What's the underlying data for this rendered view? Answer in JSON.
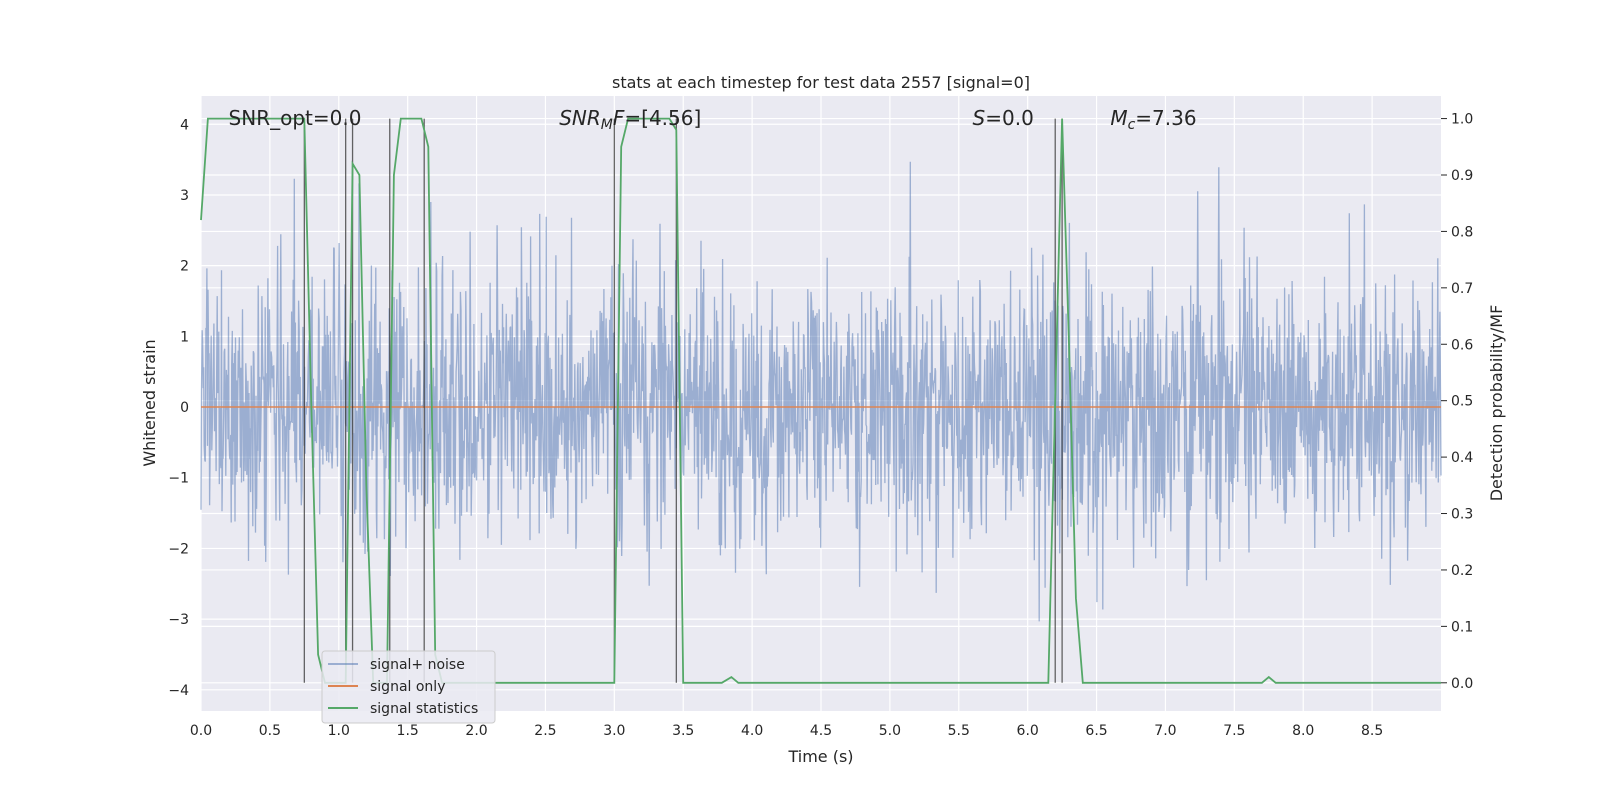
{
  "chart_data": {
    "type": "line",
    "title": "stats at each timestep for test data 2557 [signal=0]",
    "xlabel": "Time (s)",
    "ylabel": "Whitened strain",
    "y2label": "Detection probability/MF",
    "xlim": [
      0,
      9
    ],
    "ylim": [
      -4.3,
      4.4
    ],
    "y2lim": [
      -0.05,
      1.04
    ],
    "xticks": [
      0.0,
      0.5,
      1.0,
      1.5,
      2.0,
      2.5,
      3.0,
      3.5,
      4.0,
      4.5,
      5.0,
      5.5,
      6.0,
      6.5,
      7.0,
      7.5,
      8.0,
      8.5
    ],
    "xtick_labels": [
      "0.0",
      "0.5",
      "1.0",
      "1.5",
      "2.0",
      "2.5",
      "3.0",
      "3.5",
      "4.0",
      "4.5",
      "5.0",
      "5.5",
      "6.0",
      "6.5",
      "7.0",
      "7.5",
      "8.0",
      "8.5"
    ],
    "yticks": [
      -4,
      -3,
      -2,
      -1,
      0,
      1,
      2,
      3,
      4
    ],
    "ytick_labels": [
      "−4",
      "−3",
      "−2",
      "−1",
      "0",
      "1",
      "2",
      "3",
      "4"
    ],
    "y2ticks": [
      0.0,
      0.1,
      0.2,
      0.3,
      0.4,
      0.5,
      0.6,
      0.7,
      0.8,
      0.9,
      1.0
    ],
    "y2tick_labels": [
      "0.0",
      "0.1",
      "0.2",
      "0.3",
      "0.4",
      "0.5",
      "0.6",
      "0.7",
      "0.8",
      "0.9",
      "1.0"
    ],
    "grid": true,
    "legend_position": "lower-left",
    "series": [
      {
        "name": "signal+ noise",
        "axis": "left",
        "color": "#4c72b0",
        "description_kind": "noise",
        "approx_std": 0.95,
        "approx_range": [
          -3.9,
          3.8
        ]
      },
      {
        "name": "signal only",
        "axis": "left",
        "color": "#dd8452",
        "x": [
          0,
          9
        ],
        "y": [
          0,
          0
        ]
      },
      {
        "name": "signal statistics",
        "axis": "right",
        "color": "#55a868",
        "x": [
          0.0,
          0.05,
          0.1,
          0.2,
          0.3,
          0.4,
          0.5,
          0.6,
          0.7,
          0.75,
          0.8,
          0.85,
          0.9,
          1.0,
          1.05,
          1.1,
          1.15,
          1.2,
          1.25,
          1.3,
          1.35,
          1.4,
          1.45,
          1.5,
          1.55,
          1.6,
          1.65,
          1.7,
          1.75,
          1.8,
          2.0,
          2.5,
          2.95,
          3.0,
          3.05,
          3.1,
          3.15,
          3.2,
          3.3,
          3.4,
          3.45,
          3.5,
          3.55,
          3.6,
          3.7,
          3.78,
          3.85,
          3.9,
          4.0,
          4.5,
          5.0,
          5.5,
          6.0,
          6.15,
          6.2,
          6.25,
          6.3,
          6.35,
          6.4,
          6.5,
          7.0,
          7.5,
          7.7,
          7.75,
          7.8,
          7.9,
          8.0,
          8.5,
          9.0
        ],
        "y": [
          0.82,
          1.0,
          1.0,
          1.0,
          1.0,
          1.0,
          1.0,
          1.0,
          1.0,
          1.0,
          0.5,
          0.05,
          0.0,
          0.0,
          0.0,
          0.92,
          0.9,
          0.35,
          0.0,
          0.0,
          0.0,
          0.9,
          1.0,
          1.0,
          1.0,
          1.0,
          0.95,
          0.05,
          0.0,
          0.0,
          0.0,
          0.0,
          0.0,
          0.0,
          0.95,
          1.0,
          1.0,
          1.0,
          1.0,
          1.0,
          0.98,
          0.0,
          0.0,
          0.0,
          0.0,
          0.0,
          0.01,
          0.0,
          0.0,
          0.0,
          0.0,
          0.0,
          0.0,
          0.0,
          0.5,
          1.0,
          0.6,
          0.15,
          0.0,
          0.0,
          0.0,
          0.0,
          0.0,
          0.01,
          0.0,
          0.0,
          0.0,
          0.0,
          0.0
        ]
      }
    ],
    "vertical_markers_x": [
      0.75,
      1.05,
      1.1,
      1.37,
      1.62,
      3.0,
      3.45,
      6.2,
      6.25
    ],
    "annotations": [
      {
        "x": 0.2,
        "text_parts": [
          {
            "t": "SNR_opt=0.0",
            "style": "normal"
          }
        ]
      },
      {
        "x": 2.6,
        "text_parts": [
          {
            "t": "SNR",
            "style": "italic"
          },
          {
            "t": "M",
            "style": "italic-sub"
          },
          {
            "t": "F",
            "style": "italic"
          },
          {
            "t": "=[4.56]",
            "style": "normal"
          }
        ]
      },
      {
        "x": 5.6,
        "text_parts": [
          {
            "t": "S",
            "style": "italic"
          },
          {
            "t": "=0.0",
            "style": "normal"
          }
        ]
      },
      {
        "x": 6.6,
        "text_parts": [
          {
            "t": "M",
            "style": "italic"
          },
          {
            "t": "c",
            "style": "italic-sub"
          },
          {
            "t": "=7.36",
            "style": "normal"
          }
        ]
      }
    ]
  }
}
